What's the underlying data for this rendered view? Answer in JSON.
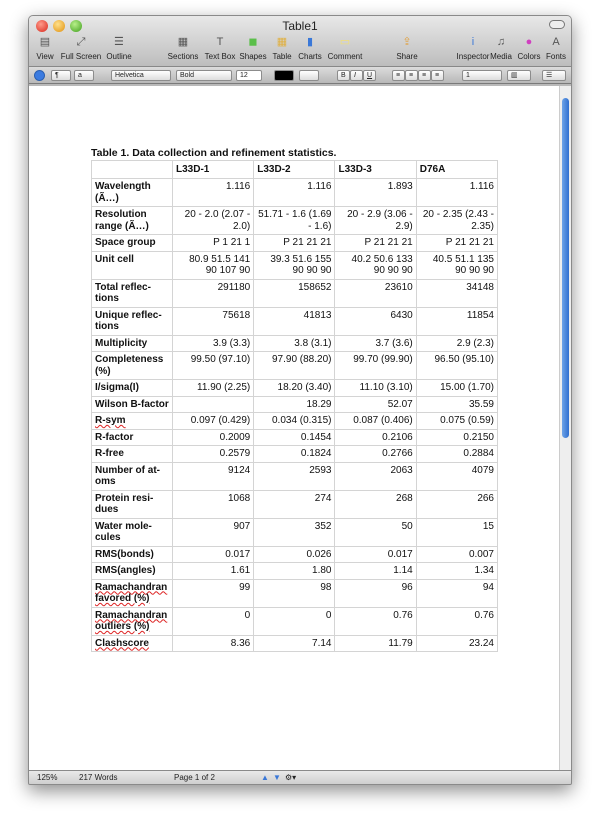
{
  "window": {
    "title": "Table1"
  },
  "toolbar": [
    {
      "label": "View",
      "icon": "view-icon"
    },
    {
      "label": "Full Screen",
      "icon": "fullscreen-icon"
    },
    {
      "label": "Outline",
      "icon": "outline-icon"
    },
    {
      "label": "Sections",
      "icon": "sections-icon"
    },
    {
      "label": "Text Box",
      "icon": "textbox-icon"
    },
    {
      "label": "Shapes",
      "icon": "shapes-icon"
    },
    {
      "label": "Table",
      "icon": "table-icon"
    },
    {
      "label": "Charts",
      "icon": "charts-icon"
    },
    {
      "label": "Comment",
      "icon": "comment-icon"
    },
    {
      "label": "Share",
      "icon": "share-icon"
    },
    {
      "label": "Inspector",
      "icon": "inspector-icon"
    },
    {
      "label": "Media",
      "icon": "media-icon"
    },
    {
      "label": "Colors",
      "icon": "colors-icon"
    },
    {
      "label": "Fonts",
      "icon": "fonts-icon"
    }
  ],
  "format_bar": {
    "paragraph_style": "¶",
    "char_style": "a",
    "font": "Helvetica",
    "typeface": "Bold",
    "size": "12",
    "bold": "B",
    "italic": "I",
    "underline": "U",
    "line_spacing": "1",
    "text_color": "#000000"
  },
  "document": {
    "caption": "Table 1.  Data collection and refinement statistics.",
    "columns": [
      "",
      "L33D-1",
      "L33D-2",
      "L33D-3",
      "D76A"
    ],
    "rows": [
      [
        "Wavelength (Ã…)",
        "1.116",
        "1.116",
        "1.893",
        "1.116"
      ],
      [
        "Resolution range (Ã…)",
        "20  - 2.0 (2.07 - 2.0)",
        "51.71  - 1.6 (1.69 - 1.6)",
        "20  - 2.9 (3.06 - 2.9)",
        "20  - 2.35 (2.43 - 2.35)"
      ],
      [
        "Space group",
        "P 1 21 1",
        "P 21 21 21",
        "P 21 21 21",
        "P 21 21 21"
      ],
      [
        "Unit cell",
        "80.9 51.5 141 90 107 90",
        "39.3 51.6 155 90 90 90",
        "40.2 50.6 133 90 90 90",
        "40.5 51.1 135 90 90 90"
      ],
      [
        "Total reflec-tions",
        "291180",
        "158652",
        "23610",
        "34148"
      ],
      [
        "Unique reflec-tions",
        "75618",
        "41813",
        "6430",
        "11854"
      ],
      [
        "Multiplicity",
        "3.9 (3.3)",
        "3.8 (3.1)",
        "3.7 (3.6)",
        "2.9 (2.3)"
      ],
      [
        "Completeness (%)",
        "99.50 (97.10)",
        "97.90 (88.20)",
        "99.70 (99.90)",
        "96.50 (95.10)"
      ],
      [
        "I/sigma(I)",
        "11.90 (2.25)",
        "18.20 (3.40)",
        "11.10 (3.10)",
        "15.00 (1.70)"
      ],
      [
        "Wilson B-factor",
        "",
        "18.29",
        "52.07",
        "35.59"
      ],
      [
        "R-sym",
        "0.097 (0.429)",
        "0.034 (0.315)",
        "0.087 (0.406)",
        "0.075 (0.59)"
      ],
      [
        "R-factor",
        "0.2009",
        "0.1454",
        "0.2106",
        "0.2150"
      ],
      [
        "R-free",
        "0.2579",
        "0.1824",
        "0.2766",
        "0.2884"
      ],
      [
        "Number of at-oms",
        "9124",
        "2593",
        "2063",
        "4079"
      ],
      [
        "Protein resi-dues",
        "1068",
        "274",
        "268",
        "266"
      ],
      [
        "Water mole-cules",
        "907",
        "352",
        "50",
        "15"
      ],
      [
        "RMS(bonds)",
        "0.017",
        "0.026",
        "0.017",
        "0.007"
      ],
      [
        "RMS(angles)",
        "1.61",
        "1.80",
        "1.14",
        "1.34"
      ],
      [
        "Ramachandran favored (%)",
        "99",
        "98",
        "96",
        "94"
      ],
      [
        "Ramachandran outliers (%)",
        "0",
        "0",
        "0.76",
        "0.76"
      ],
      [
        "Clashscore",
        "8.36",
        "7.14",
        "11.79",
        "23.24"
      ]
    ]
  },
  "status": {
    "zoom": "125%",
    "words": "217 Words",
    "page": "Page 1 of 2"
  }
}
